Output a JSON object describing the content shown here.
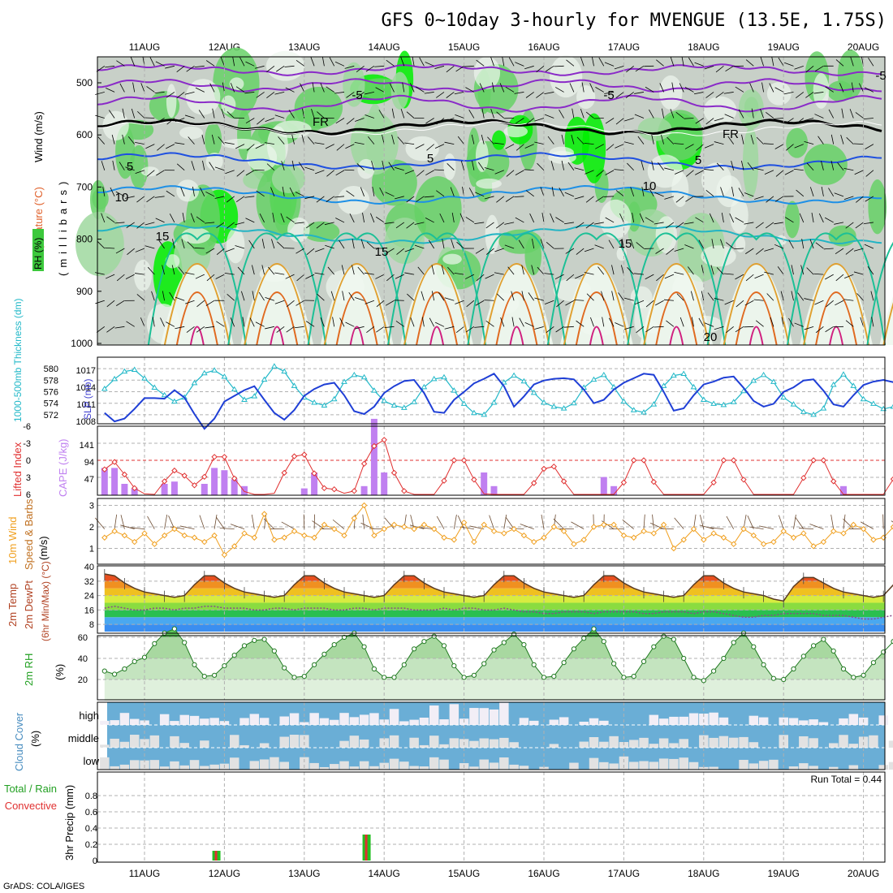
{
  "title": "GFS 0~10day 3-hourly for MVENGUE (13.5E, 1.75S)",
  "credit": "GrADS: COLA/IGES",
  "date_labels": [
    "11AUG",
    "12AUG",
    "13AUG",
    "14AUG",
    "15AUG",
    "16AUG",
    "17AUG",
    "18AUG",
    "19AUG",
    "20AUG"
  ],
  "colors": {
    "frame": "#000000",
    "grid": "#b0b0b0",
    "rh_green_light": "#d6ecd6",
    "rh_green_mid": "#66d166",
    "rh_green_bright": "#00f000",
    "slp": "#1f3fd6",
    "thickness": "#22b8c8",
    "lifted_index": "#e03030",
    "cape": "#c080f0",
    "wind_speed": "#f0a020",
    "cloud_blue": "#6aaed6",
    "cloud_white": "#f2eef6",
    "precip_green": "#22c022",
    "precip_red": "#e03030"
  },
  "panels": {
    "upper": {
      "labels": {
        "wind": "Wind (m/s)",
        "temp": "Temperature (°C)",
        "rh": "RH (%)",
        "unit": "(millibars)"
      },
      "y_ticks": [
        "500",
        "600",
        "700",
        "800",
        "900",
        "1000"
      ],
      "contour_labels": [
        "-5",
        "-5",
        "-5",
        "FR",
        "FR",
        "5",
        "5",
        "5",
        "10",
        "10",
        "15",
        "15",
        "15",
        "20"
      ]
    },
    "thickness_slp": {
      "labels": {
        "thickness": "1000-500mb Thickness (dm)",
        "slp": "SLP (mb)"
      },
      "left_ticks": [
        "580",
        "578",
        "576",
        "574",
        "572"
      ],
      "right_ticks": [
        "1017",
        "1014",
        "1011",
        "1008"
      ]
    },
    "li_cape": {
      "labels": {
        "li": "Lifted Index",
        "cape": "CAPE (J/kg)"
      },
      "left_ticks": [
        "-6",
        "-3",
        "0",
        "3",
        "6"
      ],
      "right_ticks": [
        "141",
        "94",
        "47"
      ]
    },
    "wind10m": {
      "labels": {
        "title": "10m Wind",
        "sub": "Speed & Barbs",
        "unit": "(m/s)"
      },
      "ticks": [
        "3",
        "2",
        "1"
      ]
    },
    "temp2m": {
      "labels": {
        "l1": "2m Temp",
        "l2": "2m DewPt",
        "l3": "(6hr Min/Max) (°C)"
      },
      "ticks": [
        "40",
        "32",
        "24",
        "16",
        "8"
      ]
    },
    "rh2m": {
      "labels": {
        "l1": "2m RH",
        "unit": "(%)"
      },
      "ticks": [
        "60",
        "40",
        "20"
      ]
    },
    "cloud": {
      "labels": {
        "l1": "Cloud Cover",
        "unit": "(%)"
      },
      "levels": [
        "high",
        "middle",
        "low"
      ]
    },
    "precip": {
      "labels": {
        "l1": "Total / Rain",
        "l2": "Convective",
        "l3": "3hr Precip (mm)"
      },
      "ticks": [
        "0.8",
        "0.6",
        "0.4",
        "0.2",
        "0"
      ],
      "run_total": "Run Total = 0.44"
    }
  },
  "chart_data": [
    {
      "type": "line",
      "name": "1000-500mb thickness and sea level pressure",
      "x_unit": "days from 10AUG 12Z",
      "series": [
        {
          "name": "1000-500mb Thickness (dm)",
          "values": [
            576.5,
            578.2,
            579.5,
            579.8,
            578.3,
            576.7,
            575.4,
            574.3,
            575.0,
            577.5,
            579.2,
            579.7,
            578.6,
            576.4,
            574.6,
            575.2,
            578.1,
            580.4,
            579.5,
            577.0,
            575.0,
            574.1,
            573.6,
            574.7,
            577.7,
            578.9,
            578.5,
            576.2,
            574.4,
            573.6,
            573.2,
            574.2,
            576.8,
            578.2,
            578.5,
            576.2,
            573.9,
            572.3,
            572.0,
            574.1,
            577.6,
            578.8,
            577.8,
            575.8,
            574.1,
            573.4,
            573.1,
            574.0,
            576.7,
            578.1,
            578.9,
            576.8,
            574.3,
            572.8,
            572.4,
            573.8,
            577.0,
            578.8,
            579.1,
            576.8,
            574.6,
            573.9,
            573.7,
            574.2,
            576.1,
            577.9,
            578.9,
            577.7,
            575.0,
            573.8,
            572.5,
            572.0,
            573.1,
            577.2,
            579.0,
            577.0,
            574.7,
            573.9,
            573.0,
            573.4,
            575.8,
            577.6,
            576.0,
            574.0,
            573.0,
            572.4
          ]
        },
        {
          "name": "SLP (mb)",
          "values": [
            1009.5,
            1008.0,
            1008.5,
            1010.2,
            1012.1,
            1012.1,
            1012.0,
            1013.5,
            1012.2,
            1009.3,
            1006.7,
            1008.5,
            1011.5,
            1012.5,
            1013.5,
            1014.2,
            1011.8,
            1009.5,
            1008.3,
            1010.0,
            1012.5,
            1013.7,
            1014.5,
            1014.8,
            1012.6,
            1009.8,
            1009.3,
            1010.6,
            1013.0,
            1014.2,
            1015.1,
            1015.3,
            1013.0,
            1009.7,
            1009.5,
            1011.8,
            1013.2,
            1014.7,
            1015.5,
            1016.4,
            1014.2,
            1010.6,
            1012.4,
            1014.5,
            1015.2,
            1015.5,
            1015.6,
            1015.4,
            1013.6,
            1011.2,
            1011.8,
            1013.6,
            1014.8,
            1015.6,
            1016.4,
            1016.2,
            1013.2,
            1009.9,
            1010.3,
            1012.6,
            1014.5,
            1015.0,
            1015.7,
            1015.9,
            1013.9,
            1011.6,
            1010.6,
            1011.1,
            1013.2,
            1014.0,
            1015.2,
            1015.4,
            1013.4,
            1011.0,
            1010.6,
            1012.6,
            1014.4,
            1015.0,
            1015.3,
            1014.9,
            1013.4,
            1010.8,
            1011.0,
            1013.2,
            1015.3,
            1017.6
          ]
        }
      ]
    },
    {
      "type": "bar",
      "name": "Lifted Index and CAPE",
      "series": [
        {
          "name": "Lifted Index",
          "values": [
            1.6,
            0.3,
            2.5,
            4.9,
            5.9,
            6.0,
            3.7,
            1.8,
            2.7,
            4.4,
            2.9,
            -0.6,
            -0.6,
            3.2,
            5.5,
            6.0,
            6.0,
            5.8,
            2.2,
            -0.7,
            -1.0,
            2.3,
            4.9,
            5.1,
            5.8,
            5.4,
            0.6,
            -2.5,
            -3.6,
            2.2,
            5.4,
            6.0,
            6.0,
            6.0,
            3.6,
            0.0,
            0.0,
            3.4,
            5.9,
            6.0,
            6.0,
            6.0,
            6.0,
            4.0,
            1.5,
            1.1,
            3.7,
            6.0,
            6.0,
            6.0,
            6.0,
            6.0,
            3.9,
            0.0,
            0.0,
            3.8,
            6.0,
            6.0,
            6.0,
            6.0,
            6.0,
            3.9,
            0.0,
            0.0,
            3.4,
            6.0,
            6.0,
            6.0,
            6.0,
            6.0,
            3.1,
            0.0,
            0.0,
            3.7,
            6.0,
            6.0,
            6.0,
            6.0,
            6.0,
            3.3,
            0.0,
            0.0,
            3.8,
            6.0,
            6.0
          ]
        },
        {
          "name": "CAPE (J/kg)",
          "values": [
            60,
            60,
            25,
            15,
            0,
            0,
            25,
            30,
            0,
            0,
            25,
            60,
            55,
            35,
            20,
            0,
            0,
            0,
            0,
            0,
            15,
            50,
            0,
            0,
            0,
            0,
            20,
            168,
            50,
            0,
            0,
            0,
            0,
            0,
            0,
            0,
            0,
            0,
            50,
            20,
            0,
            0,
            0,
            0,
            0,
            0,
            0,
            0,
            0,
            0,
            40,
            20,
            0,
            0,
            0,
            0,
            0,
            0,
            0,
            0,
            0,
            0,
            0,
            0,
            0,
            0,
            0,
            0,
            0,
            0,
            0,
            0,
            0,
            0,
            20,
            0,
            0,
            0,
            0,
            0,
            0,
            0,
            0,
            0,
            0,
            0,
            0
          ]
        }
      ]
    },
    {
      "type": "line",
      "name": "10m wind speed (m/s)",
      "values": [
        1.5,
        1.8,
        1.6,
        1.3,
        1.7,
        1.2,
        1.6,
        1.9,
        1.6,
        1.5,
        1.3,
        1.6,
        0.7,
        1.1,
        1.7,
        1.5,
        2.6,
        1.4,
        1.5,
        1.8,
        1.6,
        1.5,
        2.1,
        1.9,
        1.6,
        2.4,
        3.0,
        1.6,
        1.9,
        2.1,
        2.0,
        1.9,
        2.1,
        1.9,
        1.5,
        1.4,
        2.2,
        1.3,
        2.1,
        1.8,
        1.7,
        1.9,
        1.6,
        1.3,
        1.5,
        2.0,
        1.8,
        1.2,
        1.4,
        2.0,
        2.1,
        2.1,
        1.6,
        1.5,
        1.8,
        1.7,
        2.1,
        1.0,
        1.4,
        1.9,
        1.4,
        1.7,
        1.5,
        1.2,
        1.9,
        1.6,
        1.2,
        1.3,
        1.8,
        1.5,
        1.7,
        1.1,
        1.3,
        1.8,
        1.7,
        2.1,
        1.9,
        1.4,
        1.5,
        2.0,
        1.8,
        3.3,
        1.9,
        1.6,
        1.8,
        1.7
      ]
    },
    {
      "type": "area",
      "name": "2m temperature and dew point (°C)",
      "series": [
        {
          "name": "2m Temp",
          "values": [
            36,
            35,
            31,
            28,
            26,
            25,
            24,
            23,
            24,
            30,
            35,
            35,
            31,
            28,
            26,
            25,
            24,
            23,
            24,
            30,
            35,
            35,
            31,
            28,
            26,
            25,
            24,
            23,
            24,
            30,
            35,
            35,
            31,
            28,
            26,
            25,
            24,
            23,
            24,
            30,
            35,
            35,
            31,
            28,
            26,
            25,
            24,
            23,
            24,
            30,
            35,
            35,
            31,
            28,
            26,
            25,
            24,
            23,
            24,
            30,
            35,
            35,
            31,
            28,
            26,
            25,
            24,
            22,
            21,
            29,
            34,
            34,
            31,
            28,
            26,
            25,
            24,
            23,
            24,
            30,
            35,
            35,
            31,
            28,
            25,
            24
          ]
        },
        {
          "name": "2m DewPt",
          "values": [
            17,
            18,
            17,
            16,
            16,
            17,
            17,
            16,
            17,
            17,
            18,
            18,
            17,
            17,
            17,
            16,
            16,
            17,
            17,
            16,
            17,
            17,
            17,
            16,
            16,
            17,
            17,
            16,
            17,
            17,
            17,
            16,
            16,
            16,
            17,
            16,
            17,
            17,
            16,
            16,
            17,
            16,
            15,
            15,
            14,
            14,
            15,
            15,
            15,
            14,
            15,
            15,
            15,
            15,
            14,
            14,
            15,
            15,
            15,
            14,
            15,
            15,
            14,
            13,
            12,
            12,
            13,
            13,
            14,
            14,
            14,
            14,
            13,
            13,
            13,
            12,
            11,
            11,
            12,
            13,
            14,
            14,
            14,
            14,
            14,
            14
          ]
        }
      ]
    },
    {
      "type": "area",
      "name": "2m RH (%)",
      "values": [
        28,
        25,
        30,
        37,
        41,
        54,
        64,
        68,
        55,
        34,
        23,
        24,
        33,
        43,
        52,
        57,
        58,
        47,
        31,
        22,
        23,
        34,
        44,
        53,
        60,
        64,
        51,
        30,
        22,
        22,
        34,
        49,
        56,
        61,
        52,
        33,
        22,
        24,
        35,
        48,
        55,
        63,
        53,
        34,
        22,
        23,
        36,
        49,
        59,
        68,
        56,
        35,
        22,
        23,
        37,
        51,
        61,
        58,
        40,
        22,
        19,
        28,
        40,
        55,
        64,
        51,
        34,
        21,
        20,
        30,
        42,
        52,
        58,
        47,
        30,
        22,
        24,
        36,
        46,
        56,
        62,
        46,
        30,
        24,
        36,
        52,
        68
      ]
    }
  ]
}
